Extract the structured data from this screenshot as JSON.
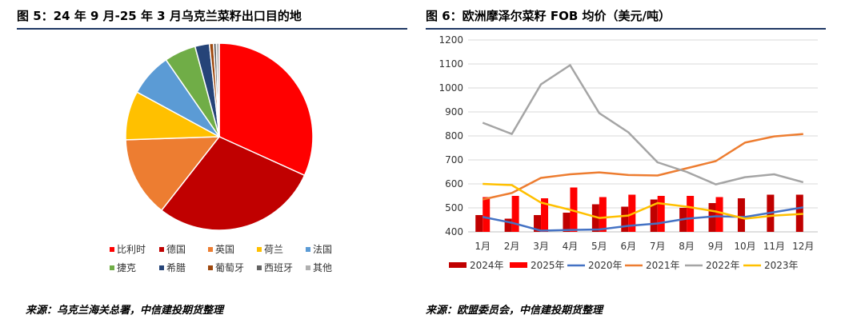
{
  "left": {
    "title": "图 5：24 年 9 月-25 年 3 月乌克兰菜籽出口目的地",
    "source": "来源：乌克兰海关总署，中信建投期货整理"
  },
  "right": {
    "title": "图 6：欧洲摩泽尔菜籽 FOB 均价（美元/吨）",
    "source": "来源：欧盟委员会，中信建投期货整理"
  },
  "chart_data": [
    {
      "type": "pie",
      "title": "",
      "legend_position": "bottom",
      "slices": [
        {
          "name": "比利时",
          "value": 32.0,
          "color": "#ff0000"
        },
        {
          "name": "德国",
          "value": 29.0,
          "color": "#c00000"
        },
        {
          "name": "英国",
          "value": 14.0,
          "color": "#ed7d31"
        },
        {
          "name": "荷兰",
          "value": 8.5,
          "color": "#ffc000"
        },
        {
          "name": "法国",
          "value": 7.5,
          "color": "#5b9bd5"
        },
        {
          "name": "捷克",
          "value": 5.5,
          "color": "#70ad47"
        },
        {
          "name": "希腊",
          "value": 2.5,
          "color": "#264478"
        },
        {
          "name": "葡萄牙",
          "value": 0.7,
          "color": "#9e480e"
        },
        {
          "name": "西班牙",
          "value": 0.5,
          "color": "#636363"
        },
        {
          "name": "其他",
          "value": 0.5,
          "color": "#b0b0b0"
        }
      ]
    },
    {
      "type": "bar+line",
      "title": "",
      "ylim": [
        400,
        1200
      ],
      "ystep": 100,
      "yticks": [
        "400",
        "500",
        "600",
        "700",
        "800",
        "900",
        "1000",
        "1100",
        "1200"
      ],
      "grid": true,
      "legend_position": "bottom",
      "categories": [
        "1月",
        "2月",
        "3月",
        "4月",
        "5月",
        "6月",
        "7月",
        "8月",
        "9月",
        "10月",
        "11月",
        "12月"
      ],
      "bar_series": [
        {
          "name": "2024年",
          "color": "#c00000",
          "values": [
            470,
            455,
            470,
            480,
            515,
            505,
            535,
            500,
            520,
            540,
            555,
            555
          ]
        },
        {
          "name": "2025年",
          "color": "#ff0000",
          "values": [
            545,
            550,
            540,
            585,
            545,
            555,
            550,
            550,
            545,
            null,
            null,
            null
          ]
        }
      ],
      "line_series": [
        {
          "name": "2020年",
          "color": "#4472c4",
          "values": [
            462,
            438,
            405,
            408,
            410,
            425,
            435,
            455,
            465,
            462,
            482,
            502
          ]
        },
        {
          "name": "2021年",
          "color": "#ed7d31",
          "values": [
            535,
            562,
            625,
            640,
            648,
            637,
            635,
            665,
            695,
            772,
            798,
            808
          ]
        },
        {
          "name": "2022年",
          "color": "#a5a5a5",
          "values": [
            855,
            808,
            1015,
            1095,
            895,
            815,
            690,
            650,
            598,
            628,
            640,
            607
          ]
        },
        {
          "name": "2023年",
          "color": "#ffc000",
          "values": [
            600,
            595,
            522,
            492,
            458,
            468,
            520,
            505,
            485,
            455,
            468,
            475
          ]
        }
      ]
    }
  ]
}
